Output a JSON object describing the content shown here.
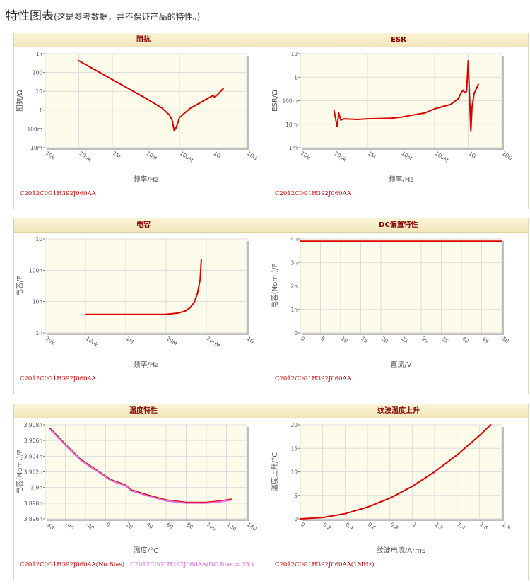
{
  "page": {
    "title": "特性图表",
    "note": "(这是参考数据，并不保证产品的特性。)"
  },
  "chart_data": [
    {
      "id": "impedance",
      "type": "line",
      "title": "阻抗",
      "xlabel": "频率/Hz",
      "ylabel": "阻抗/Ω",
      "xscale": "log",
      "yscale": "log",
      "xlim": [
        10000,
        10000000000
      ],
      "ylim": [
        0.01,
        1000
      ],
      "xticks": [
        10000,
        100000,
        1000000,
        10000000,
        100000000,
        1000000000,
        10000000000
      ],
      "xtick_labels": [
        "10k",
        "100k",
        "1M",
        "10M",
        "100M",
        "1G",
        "10G"
      ],
      "yticks": [
        0.01,
        0.1,
        1,
        10,
        100,
        1000
      ],
      "ytick_labels": [
        "10m",
        "100m",
        "1",
        "10",
        "100",
        "1k"
      ],
      "grid": true,
      "series": [
        {
          "name": "C2012C0G1H392J060AA",
          "color": "#dd0000",
          "x": [
            100000,
            1000000,
            10000000,
            30000000,
            50000000,
            60000000,
            70000000,
            80000000,
            100000000,
            200000000,
            500000000,
            1000000000,
            1100000000,
            1200000000,
            1500000000,
            2000000000
          ],
          "y": [
            420,
            42,
            4.2,
            1.3,
            0.55,
            0.3,
            0.08,
            0.12,
            0.4,
            1.2,
            3,
            6,
            5,
            5.5,
            8,
            14
          ]
        }
      ]
    },
    {
      "id": "esr",
      "type": "line",
      "title": "ESR",
      "xlabel": "频率/Hz",
      "ylabel": "ESR/Ω",
      "xscale": "log",
      "yscale": "log",
      "xlim": [
        10000,
        10000000000
      ],
      "ylim": [
        0.001,
        10
      ],
      "xticks": [
        10000,
        100000,
        1000000,
        10000000,
        100000000,
        1000000000,
        10000000000
      ],
      "xtick_labels": [
        "10k",
        "100k",
        "1M",
        "10M",
        "100M",
        "1G",
        "10G"
      ],
      "yticks": [
        0.001,
        0.01,
        0.1,
        1,
        10
      ],
      "ytick_labels": [
        "1m",
        "10m",
        "100m",
        "1",
        "10"
      ],
      "grid": true,
      "series": [
        {
          "name": "C2012C0G1H392J060AA",
          "color": "#dd0000",
          "x": [
            100000,
            110000,
            125000,
            140000,
            160000,
            200000,
            500000,
            1000000,
            5000000,
            10000000,
            50000000,
            100000000,
            300000000,
            500000000,
            600000000,
            700000000,
            800000000,
            900000000,
            1000000000,
            1200000000,
            1300000000,
            1500000000,
            2000000000
          ],
          "y": [
            0.04,
            0.02,
            0.008,
            0.03,
            0.015,
            0.017,
            0.016,
            0.017,
            0.018,
            0.02,
            0.03,
            0.045,
            0.07,
            0.12,
            0.2,
            0.28,
            0.22,
            0.25,
            5,
            0.005,
            0.05,
            0.2,
            0.5
          ]
        }
      ]
    },
    {
      "id": "capacitance",
      "type": "line",
      "title": "电容",
      "xlabel": "频率/Hz",
      "ylabel": "电容/F",
      "xscale": "log",
      "yscale": "log",
      "xlim": [
        10000,
        1000000000
      ],
      "ylim": [
        1e-09,
        1e-06
      ],
      "xticks": [
        10000,
        100000,
        1000000,
        10000000,
        100000000,
        1000000000
      ],
      "xtick_labels": [
        "10k",
        "100k",
        "1M",
        "10M",
        "100M",
        "1G"
      ],
      "yticks": [
        1e-09,
        1e-08,
        1e-07,
        1e-06
      ],
      "ytick_labels": [
        "1n",
        "10n",
        "100n",
        "1μ"
      ],
      "grid": true,
      "series": [
        {
          "name": "C2012C0G1H392J060AA",
          "color": "#dd0000",
          "x": [
            100000,
            1000000,
            10000000,
            20000000,
            30000000,
            40000000,
            50000000,
            60000000,
            70000000,
            75000000
          ],
          "y": [
            3.9e-09,
            3.9e-09,
            3.95e-09,
            4.3e-09,
            5e-09,
            6.5e-09,
            9.5e-09,
            1.8e-08,
            5e-08,
            2.2e-07
          ]
        }
      ]
    },
    {
      "id": "dc_bias",
      "type": "line",
      "title": "DC偏置特性",
      "xlabel": "直流/V",
      "ylabel": "电容(Nom.)/F",
      "xscale": "linear",
      "yscale": "linear",
      "xlim": [
        0,
        50
      ],
      "ylim": [
        0,
        4e-09
      ],
      "xticks": [
        0,
        5,
        10,
        15,
        20,
        25,
        30,
        35,
        40,
        45,
        50
      ],
      "xtick_labels": [
        "0",
        "5",
        "10",
        "15",
        "20",
        "25",
        "30",
        "35",
        "40",
        "45",
        "50"
      ],
      "yticks": [
        0,
        1e-09,
        2e-09,
        3e-09,
        4e-09
      ],
      "ytick_labels": [
        "0",
        "1n",
        "2n",
        "3n",
        "4n"
      ],
      "grid": true,
      "series": [
        {
          "name": "C2012C0G1H392J060AA",
          "color": "#dd0000",
          "x": [
            0,
            50
          ],
          "y": [
            3.9e-09,
            3.9e-09
          ]
        }
      ]
    },
    {
      "id": "temperature",
      "type": "line",
      "title": "温度特性",
      "xlabel": "温度/°C",
      "ylabel": "电容(Nom.)/F",
      "xscale": "linear",
      "yscale": "linear",
      "xlim": [
        -60,
        140
      ],
      "ylim": [
        3.896e-09,
        3.908e-09
      ],
      "xticks": [
        -60,
        -40,
        -20,
        0,
        20,
        40,
        60,
        80,
        100,
        120,
        140
      ],
      "xtick_labels": [
        "-60",
        "-40",
        "-20",
        "0",
        "20",
        "40",
        "60",
        "80",
        "100",
        "120",
        "140"
      ],
      "yticks": [
        3.896e-09,
        3.898e-09,
        3.9e-09,
        3.902e-09,
        3.904e-09,
        3.906e-09,
        3.908e-09
      ],
      "ytick_labels": [
        "3.896n",
        "3.898n",
        "3.9n",
        "3.902n",
        "3.904n",
        "3.906n",
        "3.908n"
      ],
      "grid": true,
      "series": [
        {
          "name": "C2012C0G1H392J060AA(No Bias)",
          "color": "#dd0000",
          "x": [
            -55,
            -40,
            -25,
            -10,
            5,
            20,
            25,
            40,
            60,
            80,
            100,
            115,
            125
          ],
          "y": [
            3.9075e-09,
            3.9055e-09,
            3.9036e-09,
            3.9023e-09,
            3.901e-09,
            3.9003e-09,
            3.8997e-09,
            3.8991e-09,
            3.8984e-09,
            3.8981e-09,
            3.8981e-09,
            3.8983e-09,
            3.8985e-09
          ]
        },
        {
          "name": "C2012C0G1H392J060AA(DC Bias = 25 )",
          "color": "#e070e0",
          "x": [
            -55,
            -40,
            -25,
            -10,
            5,
            20,
            25,
            40,
            60,
            80,
            100,
            115,
            125
          ],
          "y": [
            3.9074e-09,
            3.9054e-09,
            3.9035e-09,
            3.9022e-09,
            3.9009e-09,
            3.9002e-09,
            3.8996e-09,
            3.899e-09,
            3.8983e-09,
            3.898e-09,
            3.898e-09,
            3.8982e-09,
            3.8984e-09
          ]
        }
      ]
    },
    {
      "id": "ripple",
      "type": "line",
      "title": "纹波温度上升",
      "xlabel": "纹波电流/Arms",
      "ylabel": "温度上升/°C",
      "xscale": "linear",
      "yscale": "linear",
      "xlim": [
        0,
        1.8
      ],
      "ylim": [
        0,
        20
      ],
      "xticks": [
        0,
        0.2,
        0.4,
        0.6,
        0.8,
        1,
        1.2,
        1.4,
        1.6,
        1.8
      ],
      "xtick_labels": [
        "0",
        "0.2",
        "0.4",
        "0.6",
        "0.8",
        "1",
        "1.2",
        "1.4",
        "1.6",
        "1.8"
      ],
      "yticks": [
        0,
        5,
        10,
        15,
        20
      ],
      "ytick_labels": [
        "0",
        "5",
        "10",
        "15",
        "20"
      ],
      "grid": true,
      "series": [
        {
          "name": "C2012C0G1H392J060AA(1MHz)",
          "color": "#dd0000",
          "x": [
            0,
            0.2,
            0.4,
            0.6,
            0.8,
            1.0,
            1.2,
            1.4,
            1.6,
            1.7
          ],
          "y": [
            0,
            0.28,
            1.1,
            2.5,
            4.4,
            6.9,
            10,
            13.6,
            17.7,
            20
          ]
        }
      ]
    }
  ]
}
